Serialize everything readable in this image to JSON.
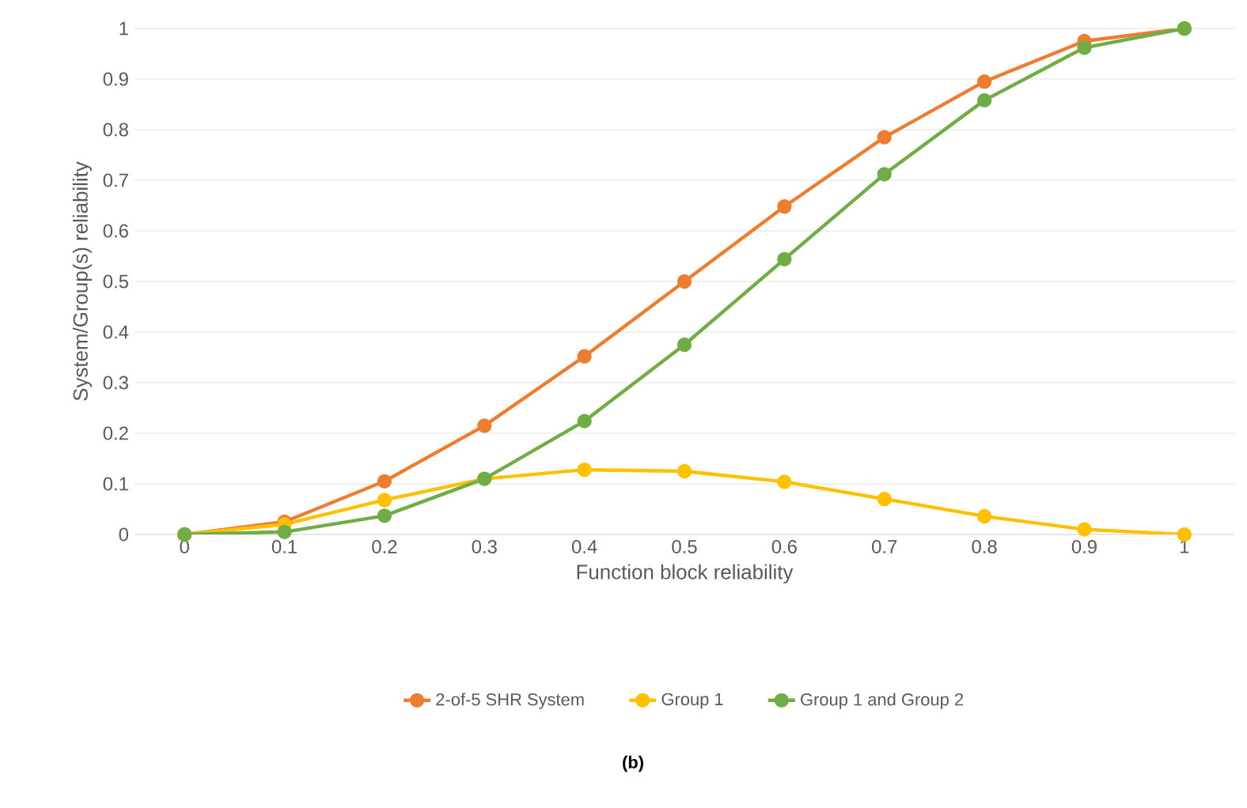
{
  "chart_data": {
    "type": "line",
    "xlabel": "Function block reliability",
    "ylabel": "System/Group(s) reliability",
    "annotations": [
      "(b)"
    ],
    "categories": [
      "0",
      "0.1",
      "0.2",
      "0.3",
      "0.4",
      "0.5",
      "0.6",
      "0.7",
      "0.8",
      "0.9",
      "1"
    ],
    "series": [
      {
        "name": "2-of-5 SHR System",
        "color": "#ed7d31",
        "values": [
          0,
          0.025,
          0.105,
          0.215,
          0.352,
          0.5,
          0.648,
          0.785,
          0.895,
          0.975,
          1
        ]
      },
      {
        "name": "Group 1",
        "color": "#ffc000",
        "values": [
          0,
          0.02,
          0.068,
          0.11,
          0.128,
          0.125,
          0.104,
          0.07,
          0.036,
          0.01,
          0
        ]
      },
      {
        "name": "Group 1 and Group 2",
        "color": "#70ad47",
        "values": [
          0,
          0.005,
          0.037,
          0.11,
          0.224,
          0.375,
          0.544,
          0.712,
          0.858,
          0.962,
          1
        ]
      }
    ],
    "ylim": [
      0,
      1
    ],
    "yticks": [
      0,
      0.1,
      0.2,
      0.3,
      0.4,
      0.5,
      0.6,
      0.7,
      0.8,
      0.9,
      1
    ],
    "grid": "y",
    "legend": "bottom",
    "marker": "circle",
    "line_style": "solid"
  }
}
